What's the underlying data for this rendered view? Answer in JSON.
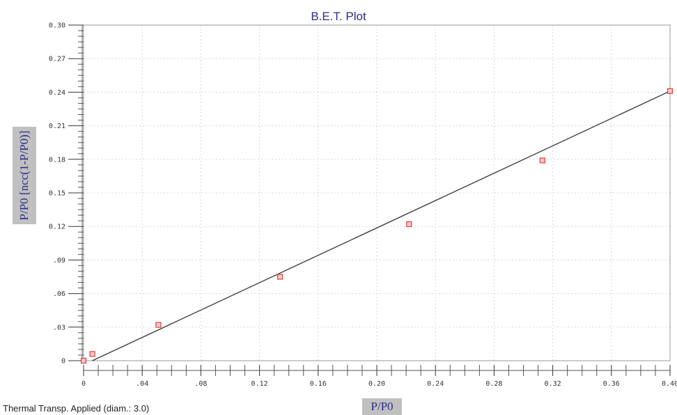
{
  "chart_data": {
    "type": "scatter",
    "title": "B.E.T. Plot",
    "xlabel": "P/P0",
    "ylabel": "P/P0 [ncc(1-P/P0)]",
    "xlim": [
      0,
      0.4
    ],
    "ylim": [
      0,
      0.3
    ],
    "x_ticks": [
      "0",
      ".04",
      ".08",
      "0.12",
      "0.16",
      "0.20",
      "0.24",
      "0.28",
      "0.32",
      "0.36",
      "0.40"
    ],
    "y_ticks": [
      "0",
      ".03",
      ".06",
      ".09",
      "0.12",
      "0.15",
      "0.18",
      "0.21",
      "0.24",
      "0.27",
      "0.30"
    ],
    "grid": true,
    "points": [
      {
        "x": 0.0,
        "y": 0.0
      },
      {
        "x": 0.006,
        "y": 0.006
      },
      {
        "x": 0.051,
        "y": 0.032
      },
      {
        "x": 0.134,
        "y": 0.075
      },
      {
        "x": 0.222,
        "y": 0.122
      },
      {
        "x": 0.313,
        "y": 0.179
      },
      {
        "x": 0.4,
        "y": 0.241
      }
    ],
    "fit_line": {
      "x": [
        0.006,
        0.4
      ],
      "y": [
        0.0,
        0.241
      ]
    },
    "annotation": "Thermal Transp. Applied (diam.: 3.0)",
    "colors": {
      "points": "#e04040",
      "line": "#333333",
      "title": "#2a2a8c",
      "label_box": "#c0c0c0"
    }
  }
}
